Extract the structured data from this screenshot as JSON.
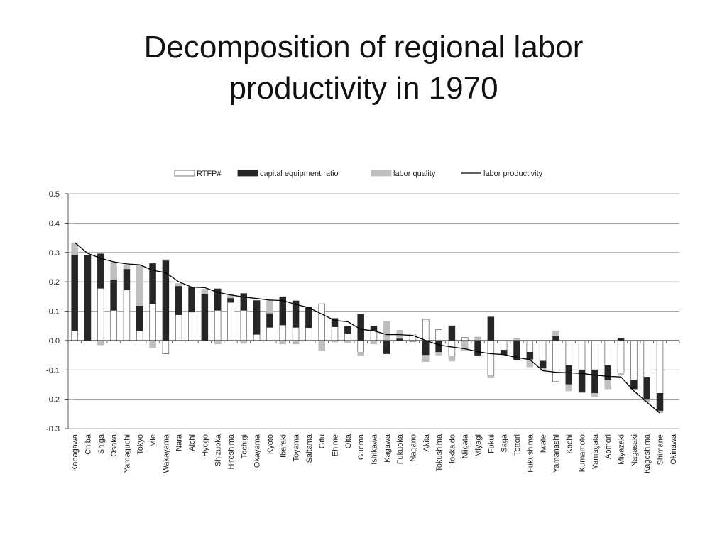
{
  "slide": {
    "title_line1": "Decomposition of regional labor",
    "title_line2": "productivity in 1970"
  },
  "colors": {
    "rtfp_fill": "#ffffff",
    "capital_fill": "#262626",
    "quality_fill": "#bfbfbf",
    "line": "#000000",
    "grid": "#8c8c8c"
  },
  "chart_data": {
    "type": "bar",
    "subtype": "stacked-bar-with-line",
    "title": "",
    "xlabel": "",
    "ylabel": "",
    "ylim": [
      -0.3,
      0.5
    ],
    "yticks": [
      "0.5",
      "0.4",
      "0.3",
      "0.2",
      "0.1",
      "0.0",
      "-0.1",
      "-0.2",
      "-0.3"
    ],
    "ytick_values": [
      0.5,
      0.4,
      0.3,
      0.2,
      0.1,
      0.0,
      -0.1,
      -0.2,
      -0.3
    ],
    "grid": "horizontal",
    "legend_position": "top",
    "legend": [
      "RTFP#",
      "capital equipment ratio",
      "labor quality",
      "labor productivity"
    ],
    "categories": [
      "Kanagawa",
      "Chiba",
      "Shiga",
      "Osaka",
      "Yamaguchi",
      "Tokyo",
      "Mie",
      "Wakayama",
      "Nara",
      "Aichi",
      "Hyogo",
      "Shizuoka",
      "Hiroshima",
      "Tochigi",
      "Okayama",
      "Kyoto",
      "Ibaraki",
      "Toyama",
      "Saitama",
      "Gifu",
      "Ehime",
      "Oita",
      "Gunma",
      "Ishikawa",
      "Kagawa",
      "Fukuoka",
      "Nagano",
      "Akita",
      "Tokushima",
      "Hokkaido",
      "Niigata",
      "Miyagi",
      "Fukui",
      "Saga",
      "Tottori",
      "Fukushima",
      "Iwate",
      "Yamanashi",
      "Kochi",
      "Kumamoto",
      "Yamagata",
      "Aomori",
      "Miyazaki",
      "Nagasaki",
      "Kagoshima",
      "Shimane",
      "Okinawa"
    ],
    "series": [
      {
        "name": "RTFP#",
        "kind": "bar",
        "values": [
          0.034,
          0.0,
          0.178,
          0.103,
          0.172,
          0.033,
          0.125,
          -0.045,
          0.088,
          0.097,
          0.0,
          0.103,
          0.13,
          0.103,
          0.021,
          0.045,
          0.053,
          0.045,
          0.044,
          0.125,
          0.047,
          0.024,
          -0.04,
          0.034,
          0.0,
          0.0,
          0.022,
          0.072,
          0.037,
          -0.055,
          0.01,
          0.0,
          -0.12,
          -0.033,
          0.0,
          -0.04,
          -0.07,
          -0.14,
          -0.085,
          -0.1,
          -0.1,
          -0.085,
          -0.11,
          -0.135,
          -0.125,
          -0.18,
          0.0
        ]
      },
      {
        "name": "capital equipment ratio",
        "kind": "bar",
        "values": [
          0.259,
          0.291,
          0.117,
          0.105,
          0.072,
          0.086,
          0.137,
          0.273,
          0.098,
          0.085,
          0.16,
          0.073,
          0.015,
          0.057,
          0.115,
          0.048,
          0.096,
          0.09,
          0.071,
          0.0,
          0.028,
          0.024,
          0.09,
          0.015,
          -0.045,
          0.007,
          -0.003,
          -0.05,
          -0.04,
          0.05,
          -0.003,
          -0.05,
          0.08,
          -0.015,
          -0.065,
          -0.025,
          -0.025,
          0.015,
          -0.065,
          -0.075,
          -0.08,
          -0.05,
          0.006,
          -0.03,
          -0.075,
          -0.06,
          0.0
        ]
      },
      {
        "name": "labor quality",
        "kind": "bar",
        "values": [
          0.04,
          0.0,
          -0.015,
          0.058,
          0.012,
          0.137,
          -0.025,
          0.003,
          0.008,
          0.0,
          0.015,
          -0.012,
          0.01,
          -0.01,
          0.0,
          0.045,
          -0.012,
          -0.012,
          0.0,
          -0.035,
          -0.005,
          -0.008,
          -0.012,
          -0.012,
          0.065,
          0.028,
          0.0,
          -0.022,
          -0.01,
          -0.015,
          -0.03,
          0.012,
          -0.005,
          0.0,
          0.007,
          -0.025,
          -0.008,
          0.018,
          -0.022,
          -0.003,
          -0.012,
          -0.03,
          -0.008,
          0.0,
          -0.01,
          -0.005,
          0.0
        ]
      },
      {
        "name": "labor productivity",
        "kind": "line",
        "values": [
          0.334,
          0.297,
          0.28,
          0.268,
          0.261,
          0.258,
          0.239,
          0.231,
          0.2,
          0.182,
          0.18,
          0.164,
          0.155,
          0.148,
          0.143,
          0.138,
          0.136,
          0.123,
          0.112,
          0.09,
          0.068,
          0.064,
          0.038,
          0.033,
          0.02,
          0.02,
          0.017,
          0.0,
          -0.015,
          -0.022,
          -0.028,
          -0.038,
          -0.045,
          -0.048,
          -0.058,
          -0.065,
          -0.103,
          -0.108,
          -0.11,
          -0.112,
          -0.118,
          -0.122,
          -0.124,
          -0.172,
          -0.21,
          -0.247,
          null
        ]
      }
    ]
  }
}
